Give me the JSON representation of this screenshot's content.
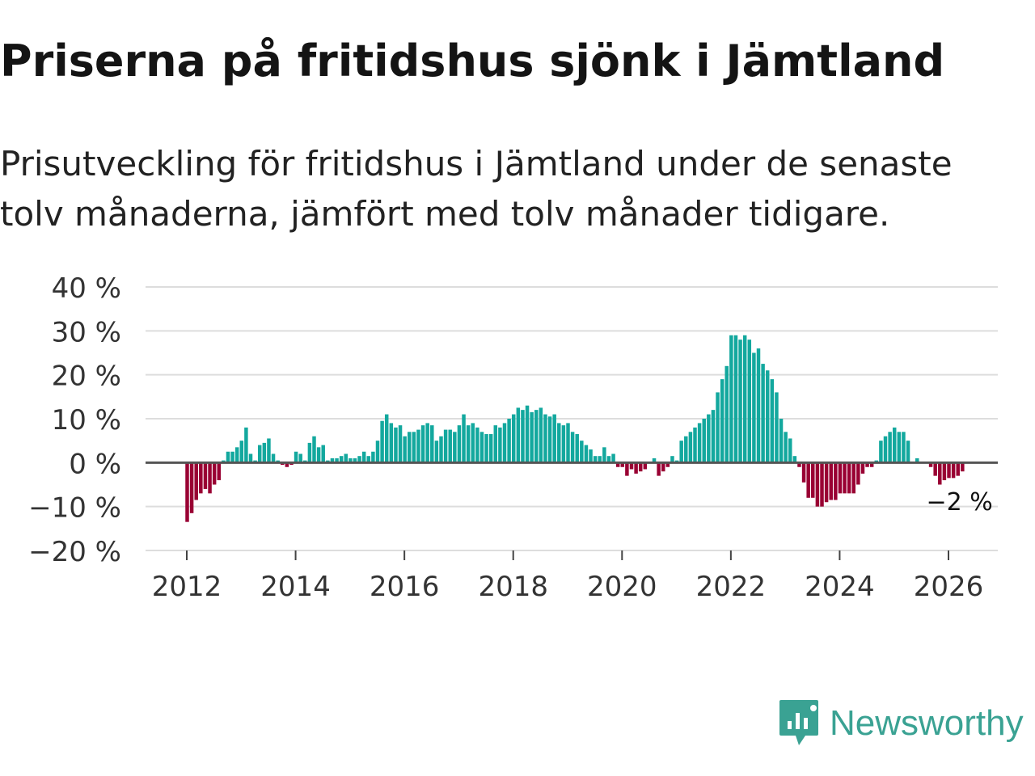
{
  "title": "Priserna på fritidshus sjönk i Jämtland",
  "subtitle": "Prisutveckling för fritidshus i Jämtland under de senaste tolv månaderna, jämfört med tolv månader tidigare.",
  "brand": {
    "name": "Newsworthy",
    "icon": "newsworthy-logo-icon",
    "color": "#3aa293"
  },
  "colors": {
    "positive": "#13a89e",
    "negative": "#990033",
    "grid": "#dddddd",
    "zero": "#555555"
  },
  "chart_data": {
    "type": "bar",
    "title": "Priserna på fritidshus sjönk i Jämtland",
    "ylabel": "",
    "xlabel": "",
    "ylim": [
      -20,
      40
    ],
    "y_ticks": [
      {
        "value": 40,
        "label": "40 %"
      },
      {
        "value": 30,
        "label": "30 %"
      },
      {
        "value": 20,
        "label": "20 %"
      },
      {
        "value": 10,
        "label": "10 %"
      },
      {
        "value": 0,
        "label": "0 %"
      },
      {
        "value": -10,
        "label": "−10 %"
      },
      {
        "value": -20,
        "label": "−20 %"
      }
    ],
    "x_ticks": [
      {
        "year": 2012,
        "label": "2012"
      },
      {
        "year": 2014,
        "label": "2014"
      },
      {
        "year": 2016,
        "label": "2016"
      },
      {
        "year": 2018,
        "label": "2018"
      },
      {
        "year": 2020,
        "label": "2020"
      },
      {
        "year": 2022,
        "label": "2022"
      },
      {
        "year": 2024,
        "label": "2024"
      },
      {
        "year": 2026,
        "label": "2026"
      }
    ],
    "start": {
      "year": 2012,
      "month": 1
    },
    "frequency": "monthly",
    "grid": true,
    "annotation": {
      "text": "−2 %",
      "value": -2,
      "position": "last-bar"
    },
    "values": [
      -13.5,
      -11.5,
      -8.5,
      -7,
      -6,
      -7,
      -5,
      -4,
      0.5,
      2.5,
      2.5,
      3.5,
      5,
      8,
      2,
      0.5,
      4,
      4.5,
      5.5,
      2,
      0.5,
      -0.5,
      -1,
      -0.5,
      2.5,
      2,
      0.5,
      4.5,
      6,
      3.5,
      4,
      0.5,
      1,
      1,
      1.5,
      2,
      1,
      1,
      1.5,
      2.5,
      1.5,
      2.5,
      5,
      9.5,
      11,
      9,
      8,
      8.5,
      6,
      7,
      7,
      7.5,
      8.5,
      9,
      8.5,
      5,
      6,
      7.5,
      7.5,
      7,
      8.5,
      11,
      8.5,
      9,
      8,
      7,
      6.5,
      6.5,
      8.5,
      8,
      9,
      10,
      11,
      12.5,
      12,
      13,
      11.5,
      12,
      12.5,
      11,
      10.5,
      11,
      9,
      8.5,
      9,
      7,
      6.5,
      5,
      4,
      3,
      1.5,
      1.5,
      3.5,
      1.5,
      2,
      -1,
      -1,
      -3,
      -1.5,
      -2.5,
      -2,
      -1.5,
      0,
      1,
      -3,
      -2,
      -1,
      1.5,
      0.5,
      5,
      6,
      7,
      8,
      9,
      10,
      11,
      12,
      16,
      19,
      22,
      29,
      29,
      28,
      29,
      28,
      25,
      26,
      22.5,
      21,
      19,
      16,
      10,
      7,
      5.5,
      1.5,
      -1,
      -4.5,
      -8,
      -8,
      -10,
      -10,
      -9,
      -8.5,
      -8.5,
      -7,
      -7,
      -7,
      -7,
      -5,
      -2.5,
      -1,
      -1,
      0.5,
      5,
      6,
      7,
      8,
      7,
      7,
      5,
      0,
      1,
      0,
      0,
      -1,
      -3,
      -5,
      -4,
      -3.5,
      -3.5,
      -3,
      -2
    ]
  }
}
